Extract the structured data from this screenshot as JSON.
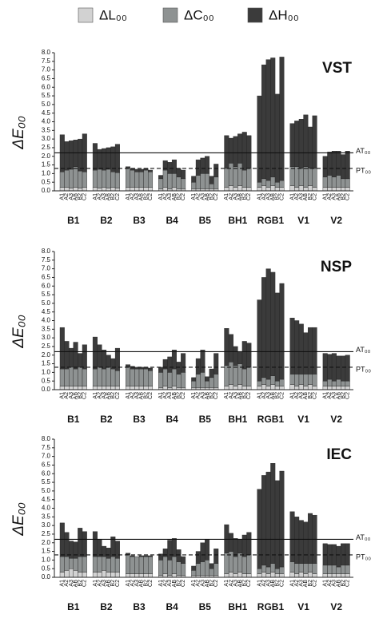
{
  "chart_data": [
    {
      "type": "bar",
      "stacked": true,
      "title": "VST",
      "ylabel": "ΔE₀₀",
      "groups": [
        "B1",
        "B2",
        "B3",
        "B4",
        "B5",
        "BH1",
        "RGB1",
        "V1",
        "V2"
      ],
      "categories": [
        "A1",
        "A2",
        "A3",
        "AB",
        "B2",
        "C2",
        "A1",
        "A2",
        "A3",
        "AB",
        "B2",
        "C2",
        "A1",
        "A2",
        "A3",
        "AB",
        "B2",
        "C2",
        "A1",
        "A2",
        "A3",
        "AB",
        "B2",
        "C2",
        "A1",
        "A2",
        "A3",
        "AB",
        "B2",
        "C2",
        "A1",
        "A2",
        "A3",
        "AB",
        "B2",
        "C2",
        "A1",
        "A2",
        "A3",
        "AB",
        "B2",
        "C2",
        "A1",
        "A2",
        "A3",
        "AB",
        "B2",
        "C2",
        "A1",
        "A2",
        "A3",
        "AB",
        "B2",
        "C2"
      ],
      "series": [
        {
          "name": "ΔL₀₀",
          "color": "#d2d2d2",
          "values": [
            0.2,
            0.2,
            0.15,
            0.2,
            0.15,
            0.2,
            0.2,
            0.15,
            0.2,
            0.15,
            0.2,
            0.15,
            0.2,
            0.2,
            0.2,
            0.2,
            0.2,
            0.2,
            0.1,
            0.2,
            0.1,
            0.2,
            0.1,
            0.1,
            0.1,
            0.1,
            0.1,
            0.1,
            0.1,
            0.1,
            0.2,
            0.3,
            0.2,
            0.3,
            0.2,
            0.2,
            0.2,
            0.3,
            0.2,
            0.3,
            0.2,
            0.2,
            0.3,
            0.2,
            0.3,
            0.2,
            0.3,
            0.2,
            0.2,
            0.2,
            0.2,
            0.2,
            0.2,
            0.2
          ]
        },
        {
          "name": "ΔC₀₀",
          "color": "#8e9292",
          "values": [
            0.9,
            1.0,
            1.1,
            1.2,
            1.0,
            0.9,
            1.0,
            1.1,
            1.0,
            1.1,
            0.9,
            0.9,
            1.1,
            1.0,
            0.9,
            0.9,
            1.0,
            0.9,
            0.6,
            1.0,
            0.9,
            0.8,
            0.7,
            0.6,
            0.4,
            0.8,
            0.9,
            0.9,
            0.3,
            0.7,
            1.1,
            1.3,
            1.2,
            1.3,
            1.0,
            1.1,
            0.3,
            0.4,
            0.4,
            0.5,
            0.3,
            0.4,
            1.1,
            1.2,
            1.0,
            1.2,
            1.0,
            1.1,
            0.6,
            0.7,
            0.6,
            0.7,
            0.5,
            0.5
          ]
        },
        {
          "name": "ΔH₀₀",
          "color": "#3b3b3b",
          "values": [
            2.15,
            1.65,
            1.65,
            1.55,
            1.85,
            2.2,
            1.55,
            1.15,
            1.25,
            1.25,
            1.45,
            1.65,
            0.1,
            0.1,
            0.15,
            0.15,
            0.1,
            0.1,
            0.2,
            0.55,
            0.65,
            0.8,
            0.5,
            0.5,
            0.35,
            0.9,
            0.9,
            1.0,
            0.45,
            0.75,
            1.9,
            1.45,
            1.75,
            1.7,
            2.2,
            1.9,
            5.0,
            6.6,
            7.0,
            6.9,
            5.1,
            7.15,
            2.5,
            2.65,
            2.85,
            3.0,
            2.4,
            3.05,
            1.2,
            1.35,
            1.5,
            1.4,
            1.4,
            1.6
          ]
        }
      ],
      "ref_lines": [
        {
          "value": 2.2,
          "label": "AT₀₀",
          "dashed": false
        },
        {
          "value": 1.3,
          "label": "PT₀₀",
          "dashed": true
        }
      ],
      "ylim": [
        0,
        8
      ],
      "yticks": [
        {
          "value": 0,
          "label": "0.0"
        },
        {
          "value": 0.5,
          "label": "0.5"
        },
        {
          "value": 1,
          "label": "1.0"
        },
        {
          "value": 1.5,
          "label": "1.5"
        },
        {
          "value": 2,
          "label": "2.0"
        },
        {
          "value": 2.5,
          "label": "2.5"
        },
        {
          "value": 3,
          "label": "3.0"
        },
        {
          "value": 3.5,
          "label": "3.5"
        },
        {
          "value": 4,
          "label": "4.0"
        },
        {
          "value": 4.5,
          "label": "4.5"
        },
        {
          "value": 5,
          "label": "5.0"
        },
        {
          "value": 5.5,
          "label": "5.5"
        },
        {
          "value": 6,
          "label": "6.0"
        },
        {
          "value": 6.5,
          "label": "6.5"
        },
        {
          "value": 7,
          "label": "7.0"
        },
        {
          "value": 7.5,
          "label": "7.5"
        },
        {
          "value": 8,
          "label": "8.0"
        }
      ]
    },
    {
      "type": "bar",
      "stacked": true,
      "title": "NSP",
      "ylabel": "ΔE₀₀",
      "groups": [
        "B1",
        "B2",
        "B3",
        "B4",
        "B5",
        "BH1",
        "RGB1",
        "V1",
        "V2"
      ],
      "categories": [
        "A1",
        "A2",
        "A3",
        "AB",
        "B2",
        "C2",
        "A1",
        "A2",
        "A3",
        "AB",
        "B2",
        "C2",
        "A1",
        "A2",
        "A3",
        "AB",
        "B2",
        "C2",
        "A1",
        "A2",
        "A3",
        "AB",
        "B2",
        "C2",
        "A1",
        "A2",
        "A3",
        "AB",
        "B2",
        "C2",
        "A1",
        "A2",
        "A3",
        "AB",
        "B2",
        "C2",
        "A1",
        "A2",
        "A3",
        "AB",
        "B2",
        "C2",
        "A1",
        "A2",
        "A3",
        "AB",
        "B2",
        "C2",
        "A1",
        "A2",
        "A3",
        "AB",
        "B2",
        "C2"
      ],
      "series": [
        {
          "color": "#d2d2d2",
          "values": [
            0.2,
            0.2,
            0.2,
            0.2,
            0.2,
            0.2,
            0.2,
            0.2,
            0.2,
            0.2,
            0.2,
            0.2,
            0.2,
            0.2,
            0.2,
            0.2,
            0.2,
            0.2,
            0.1,
            0.2,
            0.1,
            0.2,
            0.1,
            0.1,
            0.1,
            0.1,
            0.1,
            0.1,
            0.1,
            0.1,
            0.2,
            0.3,
            0.2,
            0.3,
            0.2,
            0.2,
            0.2,
            0.3,
            0.2,
            0.3,
            0.2,
            0.2,
            0.3,
            0.2,
            0.3,
            0.2,
            0.3,
            0.2,
            0.2,
            0.2,
            0.2,
            0.2,
            0.2,
            0.2
          ]
        },
        {
          "color": "#8e9292",
          "values": [
            1.0,
            1.0,
            1.1,
            1.0,
            1.1,
            1.0,
            1.0,
            1.1,
            1.0,
            1.1,
            1.0,
            0.9,
            1.1,
            1.0,
            1.0,
            1.0,
            1.0,
            0.9,
            0.9,
            1.0,
            0.9,
            1.0,
            0.8,
            0.9,
            0.4,
            0.8,
            0.9,
            0.4,
            0.6,
            0.8,
            1.2,
            1.3,
            1.2,
            1.2,
            1.0,
            1.1,
            0.3,
            0.4,
            0.4,
            0.5,
            0.3,
            0.4,
            0.6,
            0.7,
            0.6,
            0.7,
            0.6,
            0.7,
            0.3,
            0.4,
            0.3,
            0.4,
            0.3,
            0.3
          ]
        },
        {
          "color": "#3b3b3b",
          "values": [
            2.4,
            1.6,
            1.1,
            1.55,
            0.8,
            1.4,
            1.85,
            1.3,
            1.1,
            0.7,
            0.6,
            1.3,
            0.15,
            0.15,
            0.1,
            0.1,
            0.1,
            0.15,
            0.3,
            0.55,
            0.9,
            1.1,
            0.7,
            1.1,
            0.2,
            0.9,
            1.3,
            0.25,
            0.5,
            1.2,
            2.15,
            1.6,
            1.1,
            0.7,
            1.6,
            1.4,
            4.7,
            5.8,
            6.4,
            6.0,
            5.1,
            5.55,
            3.25,
            3.1,
            2.9,
            2.4,
            2.7,
            2.7,
            1.6,
            1.45,
            1.6,
            1.35,
            1.45,
            1.5
          ]
        }
      ],
      "ref_lines": [
        {
          "value": 2.2,
          "label": "AT₀₀",
          "dashed": false
        },
        {
          "value": 1.3,
          "label": "PT₀₀",
          "dashed": true
        }
      ],
      "ylim": [
        0,
        8
      ],
      "yticks": [
        {
          "value": 0,
          "label": "0.0"
        },
        {
          "value": 0.5,
          "label": "0.5"
        },
        {
          "value": 1,
          "label": "1.0"
        },
        {
          "value": 1.5,
          "label": "1.5"
        },
        {
          "value": 2,
          "label": "2.0"
        },
        {
          "value": 2.5,
          "label": "2.5"
        },
        {
          "value": 3,
          "label": "3.0"
        },
        {
          "value": 3.5,
          "label": "3.5"
        },
        {
          "value": 4,
          "label": "4.0"
        },
        {
          "value": 4.5,
          "label": "4.5"
        },
        {
          "value": 5,
          "label": "5.0"
        },
        {
          "value": 5.5,
          "label": "5.5"
        },
        {
          "value": 6,
          "label": "6.0"
        },
        {
          "value": 6.5,
          "label": "6.5"
        },
        {
          "value": 7,
          "label": "7.0"
        },
        {
          "value": 7.5,
          "label": "7.5"
        },
        {
          "value": 8,
          "label": "8.0"
        }
      ]
    },
    {
      "type": "bar",
      "stacked": true,
      "title": "IEC",
      "ylabel": "ΔE₀₀",
      "groups": [
        "B1",
        "B2",
        "B3",
        "B4",
        "B5",
        "BH1",
        "RGB1",
        "V1",
        "V2"
      ],
      "categories": [
        "A1",
        "A2",
        "A3",
        "AB",
        "B2",
        "C2",
        "A1",
        "A2",
        "A3",
        "AB",
        "B2",
        "C2",
        "A1",
        "A2",
        "A3",
        "AB",
        "B2",
        "C2",
        "A1",
        "A2",
        "A3",
        "AB",
        "B2",
        "C2",
        "A1",
        "A2",
        "A3",
        "AB",
        "B2",
        "C2",
        "A1",
        "A2",
        "A3",
        "AB",
        "B2",
        "C2",
        "A1",
        "A2",
        "A3",
        "AB",
        "B2",
        "C2",
        "A1",
        "A2",
        "A3",
        "AB",
        "B2",
        "C2",
        "A1",
        "A2",
        "A3",
        "AB",
        "B2",
        "C2"
      ],
      "series": [
        {
          "color": "#d2d2d2",
          "values": [
            0.3,
            0.4,
            0.5,
            0.4,
            0.3,
            0.3,
            0.3,
            0.3,
            0.4,
            0.3,
            0.3,
            0.3,
            0.2,
            0.2,
            0.2,
            0.2,
            0.2,
            0.2,
            0.1,
            0.2,
            0.1,
            0.2,
            0.1,
            0.1,
            0.1,
            0.1,
            0.1,
            0.1,
            0.1,
            0.1,
            0.2,
            0.3,
            0.2,
            0.3,
            0.2,
            0.2,
            0.2,
            0.3,
            0.2,
            0.3,
            0.2,
            0.2,
            0.3,
            0.2,
            0.3,
            0.2,
            0.3,
            0.2,
            0.2,
            0.2,
            0.2,
            0.2,
            0.2,
            0.2
          ]
        },
        {
          "color": "#8e9292",
          "values": [
            0.9,
            0.8,
            0.6,
            0.7,
            0.9,
            0.9,
            0.9,
            0.9,
            0.8,
            0.8,
            0.9,
            0.8,
            1.1,
            1.0,
            1.0,
            1.0,
            1.0,
            1.0,
            0.9,
            1.0,
            0.9,
            1.0,
            0.8,
            0.7,
            0.3,
            0.7,
            0.8,
            0.9,
            0.4,
            0.7,
            1.2,
            1.2,
            1.0,
            1.1,
            1.0,
            1.1,
            0.3,
            0.4,
            0.4,
            0.5,
            0.3,
            0.4,
            0.6,
            0.6,
            0.5,
            0.6,
            0.5,
            0.6,
            0.5,
            0.5,
            0.5,
            0.4,
            0.5,
            0.5
          ]
        },
        {
          "color": "#3b3b3b",
          "values": [
            1.95,
            1.4,
            1.0,
            0.95,
            1.65,
            1.45,
            1.45,
            1.0,
            0.6,
            0.6,
            1.15,
            1.0,
            0.1,
            0.05,
            0,
            0.05,
            0.05,
            0.05,
            0.35,
            0.45,
            1.15,
            1.05,
            0.7,
            0.4,
            0.25,
            0.7,
            1.1,
            1.2,
            0.3,
            0.85,
            1.65,
            1.05,
            1.05,
            0.8,
            1.25,
            1.3,
            4.6,
            5.2,
            5.5,
            5.8,
            5.1,
            5.55,
            2.9,
            2.7,
            2.5,
            2.4,
            2.9,
            2.8,
            1.25,
            1.2,
            1.2,
            1.2,
            1.25,
            1.25
          ]
        }
      ],
      "ref_lines": [
        {
          "value": 2.2,
          "label": "AT₀₀",
          "dashed": false
        },
        {
          "value": 1.3,
          "label": "PT₀₀",
          "dashed": true
        }
      ],
      "ylim": [
        0,
        8
      ],
      "yticks": [
        {
          "value": 0,
          "label": "0.0"
        },
        {
          "value": 0.5,
          "label": "0.5"
        },
        {
          "value": 1,
          "label": "1.0"
        },
        {
          "value": 1.5,
          "label": "1.5"
        },
        {
          "value": 2,
          "label": "2.0"
        },
        {
          "value": 2.5,
          "label": "2.5"
        },
        {
          "value": 3,
          "label": "3.0"
        },
        {
          "value": 3.5,
          "label": "3.5"
        },
        {
          "value": 4,
          "label": "4.0"
        },
        {
          "value": 4.5,
          "label": "4.5"
        },
        {
          "value": 5,
          "label": "5.0"
        },
        {
          "value": 5.5,
          "label": "5.5"
        },
        {
          "value": 6,
          "label": "6.0"
        },
        {
          "value": 6.5,
          "label": "6.5"
        },
        {
          "value": 7,
          "label": "7.0"
        },
        {
          "value": 7.5,
          "label": "7.5"
        },
        {
          "value": 8,
          "label": "8.0"
        }
      ]
    }
  ]
}
